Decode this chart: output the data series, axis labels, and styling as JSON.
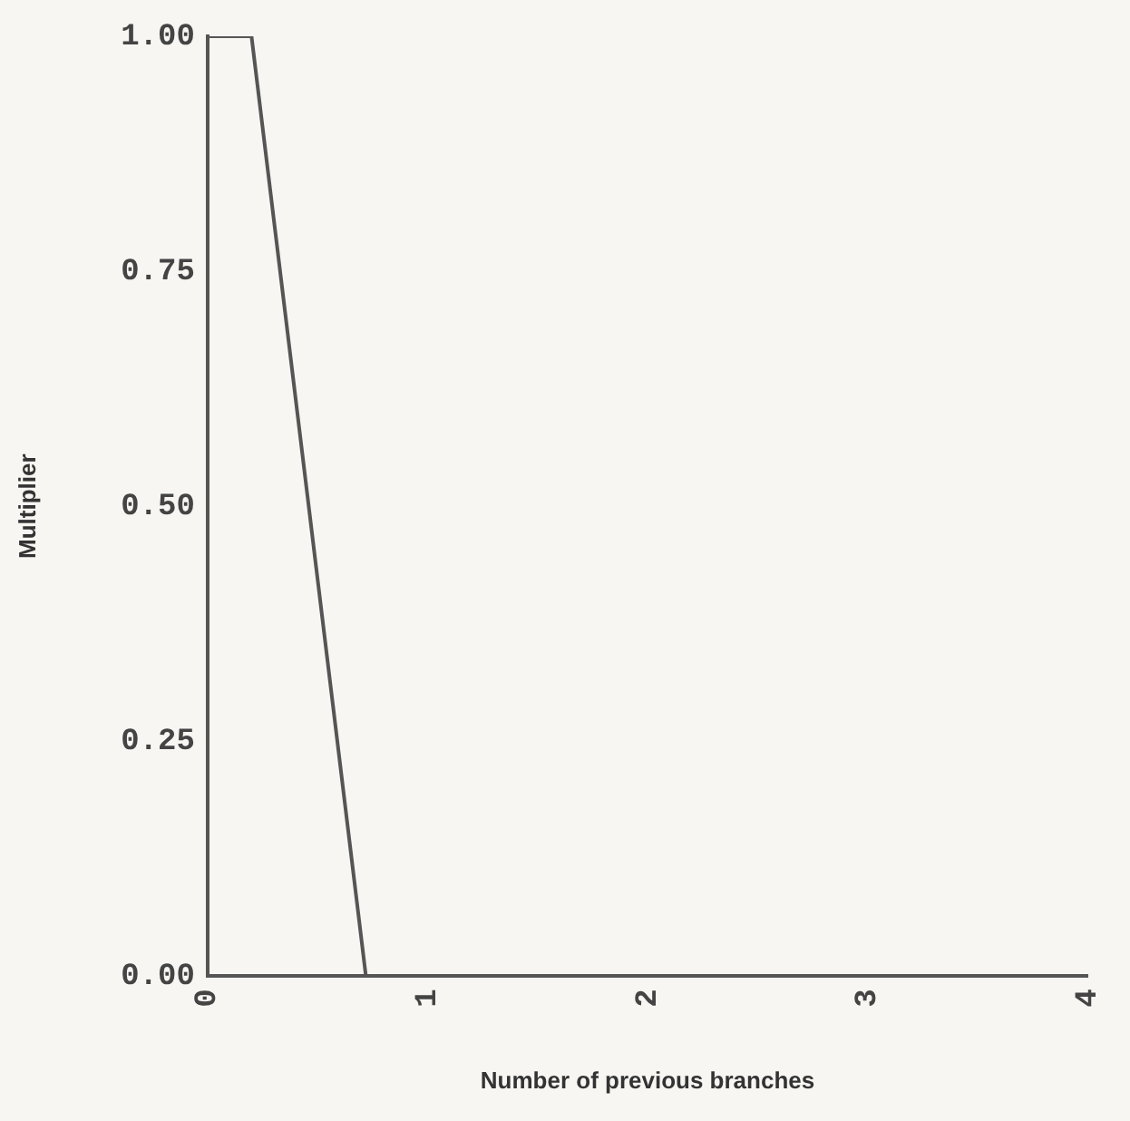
{
  "chart_data": {
    "type": "line",
    "xlabel": "Number of previous branches",
    "ylabel": "Multiplier",
    "x": [
      0,
      0.2,
      0.72,
      4
    ],
    "series": [
      {
        "color": "#555555",
        "values": [
          1,
          1,
          0,
          0
        ]
      }
    ],
    "xlim": [
      0,
      4
    ],
    "xticks": [
      0,
      1,
      2,
      3,
      4
    ],
    "ylim": [
      0,
      1
    ],
    "yticks": [
      {
        "value": 0,
        "label": "0.00"
      },
      {
        "value": 0.25,
        "label": "0.25"
      },
      {
        "value": 0.5,
        "label": "0.50"
      },
      {
        "value": 0.75,
        "label": "0.75"
      },
      {
        "value": 1,
        "label": "1.00"
      }
    ],
    "grid": false,
    "legend": false,
    "marker": "none",
    "line_style": "solid"
  }
}
